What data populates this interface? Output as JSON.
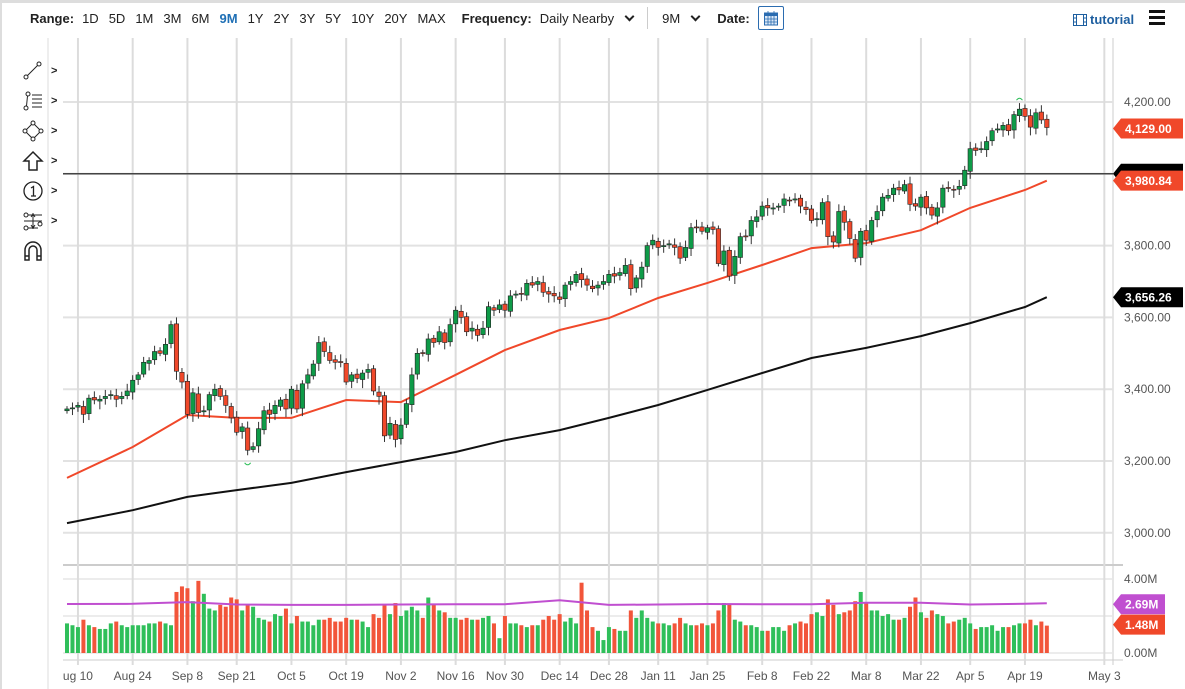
{
  "toolbar": {
    "range_label": "Range:",
    "ranges": [
      "1D",
      "5D",
      "1M",
      "3M",
      "6M",
      "9M",
      "1Y",
      "2Y",
      "3Y",
      "5Y",
      "10Y",
      "20Y",
      "MAX"
    ],
    "active_range": "9M",
    "frequency_label": "Frequency:",
    "frequency_value": "Daily Nearby",
    "period_value": "9M",
    "date_label": "Date:",
    "tutorial_label": "tutorial"
  },
  "drawing_tools": [
    "line-tool-icon",
    "fib-tool-icon",
    "shape-tool-icon",
    "arrow-tool-icon",
    "marker-tool-icon",
    "measure-tool-icon",
    "magnet-icon"
  ],
  "colors": {
    "up": "#0e9b48",
    "down": "#f0482a",
    "ma_fast": "#f0482a",
    "ma_slow": "#111111",
    "volume_ma": "#c04fd0",
    "price_line": "#444444"
  },
  "chart_data": {
    "type": "candlestick",
    "price_axis": {
      "ticks": [
        "4,200.00",
        "3,800.00",
        "3,600.00",
        "3,400.00",
        "3,200.00",
        "3,000.00"
      ],
      "tick_values": [
        4200,
        3800,
        3600,
        3400,
        3200,
        3000
      ],
      "range": [
        2990,
        4250
      ]
    },
    "volume_axis": {
      "ticks": [
        "4.00M",
        "0.00M"
      ],
      "tick_values": [
        4,
        0
      ],
      "range": [
        0,
        4.5
      ]
    },
    "x_ticks": [
      "ug 10",
      "Aug 24",
      "Sep 8",
      "Sep 21",
      "Oct 5",
      "Oct 19",
      "Nov 2",
      "Nov 16",
      "Nov 30",
      "Dec 14",
      "Dec 28",
      "Jan 11",
      "Jan 25",
      "Feb 8",
      "Feb 22",
      "Mar 8",
      "Mar 22",
      "Apr 5",
      "Apr 19",
      "May 3"
    ],
    "grid": true,
    "horizontal_line": 4000,
    "last_price_label": "4,129.00",
    "ma_fast_label": "3,980.84",
    "ma_slow_label": "3,656.26",
    "volume_ma_label": "2.69M",
    "volume_last_label": "1.48M",
    "closes": [
      3345,
      3348,
      3355,
      3330,
      3375,
      3370,
      3372,
      3380,
      3385,
      3372,
      3380,
      3395,
      3425,
      3440,
      3475,
      3480,
      3505,
      3500,
      3525,
      3580,
      3450,
      3420,
      3330,
      3390,
      3335,
      3340,
      3385,
      3400,
      3380,
      3355,
      3320,
      3280,
      3295,
      3230,
      3240,
      3290,
      3340,
      3330,
      3355,
      3370,
      3345,
      3400,
      3345,
      3415,
      3440,
      3470,
      3530,
      3505,
      3480,
      3475,
      3475,
      3420,
      3440,
      3430,
      3445,
      3455,
      3395,
      3380,
      3270,
      3305,
      3260,
      3300,
      3360,
      3440,
      3500,
      3500,
      3540,
      3530,
      3560,
      3530,
      3580,
      3620,
      3600,
      3560,
      3570,
      3550,
      3570,
      3630,
      3620,
      3635,
      3620,
      3660,
      3665,
      3665,
      3695,
      3690,
      3700,
      3670,
      3665,
      3660,
      3650,
      3690,
      3700,
      3720,
      3705,
      3690,
      3680,
      3690,
      3700,
      3720,
      3715,
      3725,
      3745,
      3680,
      3710,
      3740,
      3800,
      3815,
      3795,
      3800,
      3805,
      3795,
      3765,
      3795,
      3850,
      3850,
      3840,
      3850,
      3845,
      3750,
      3785,
      3715,
      3770,
      3825,
      3825,
      3870,
      3880,
      3910,
      3905,
      3905,
      3910,
      3930,
      3925,
      3930,
      3910,
      3900,
      3870,
      3875,
      3920,
      3825,
      3810,
      3895,
      3865,
      3820,
      3765,
      3840,
      3815,
      3870,
      3895,
      3935,
      3940,
      3960,
      3955,
      3970,
      3915,
      3910,
      3935,
      3905,
      3885,
      3905,
      3960,
      3960,
      3955,
      3965,
      4010,
      4070,
      4065,
      4070,
      4090,
      4120,
      4125,
      4135,
      4120,
      4165,
      4180,
      4160,
      4130,
      4170,
      4150,
      4129
    ],
    "volumes_millions": [
      1.6,
      1.5,
      1.4,
      1.8,
      1.5,
      1.4,
      1.3,
      1.3,
      1.6,
      1.7,
      1.5,
      1.4,
      1.5,
      1.5,
      1.5,
      1.6,
      1.6,
      1.7,
      1.6,
      1.5,
      3.3,
      3.6,
      3.5,
      2.8,
      3.9,
      3.2,
      2.4,
      2.3,
      2.6,
      2.5,
      3.0,
      2.9,
      2.3,
      2.6,
      2.5,
      1.9,
      1.8,
      1.7,
      2.1,
      2.0,
      2.4,
      1.6,
      2.0,
      1.7,
      1.7,
      1.5,
      1.8,
      1.8,
      1.9,
      1.7,
      1.7,
      1.9,
      1.8,
      1.8,
      1.7,
      1.4,
      2.1,
      1.9,
      2.6,
      2.1,
      2.7,
      2.0,
      2.3,
      2.5,
      2.3,
      1.9,
      3.0,
      2.6,
      2.3,
      2.2,
      1.9,
      1.9,
      1.8,
      1.9,
      1.8,
      1.8,
      1.9,
      2.0,
      1.6,
      0.8,
      2.0,
      1.6,
      1.6,
      1.5,
      1.4,
      1.5,
      1.5,
      1.8,
      2.0,
      1.8,
      2.1,
      1.7,
      1.9,
      1.6,
      3.8,
      2.3,
      1.4,
      1.2,
      0.7,
      1.4,
      1.3,
      1.2,
      1.2,
      2.3,
      1.9,
      2.3,
      1.9,
      1.7,
      1.6,
      1.6,
      1.5,
      1.6,
      1.9,
      1.6,
      1.5,
      1.5,
      1.6,
      1.5,
      1.6,
      2.3,
      2.7,
      2.6,
      1.8,
      1.7,
      1.5,
      1.5,
      1.4,
      1.2,
      1.2,
      1.4,
      1.4,
      1.2,
      1.5,
      1.6,
      1.7,
      1.6,
      2.1,
      2.2,
      2.0,
      2.9,
      2.6,
      2.1,
      2.2,
      2.3,
      2.8,
      3.3,
      2.7,
      2.3,
      2.3,
      2.0,
      2.1,
      1.8,
      1.8,
      1.9,
      2.5,
      3.0,
      2.2,
      1.9,
      2.3,
      2.1,
      2.0,
      1.6,
      1.7,
      1.8,
      1.9,
      1.6,
      1.3,
      1.4,
      1.4,
      1.5,
      1.2,
      1.4,
      1.4,
      1.5,
      1.6,
      1.6,
      1.8,
      1.5,
      1.7,
      1.48
    ],
    "ma_dates": [
      "Aug 6",
      "Aug 24",
      "Sep 8",
      "Sep 21",
      "Oct 5",
      "Oct 19",
      "Nov 2",
      "Nov 16",
      "Nov 30",
      "Dec 14",
      "Dec 28",
      "Jan 11",
      "Jan 25",
      "Feb 8",
      "Feb 22",
      "Mar 8",
      "Mar 22",
      "Apr 5",
      "Apr 19",
      "Apr 23"
    ],
    "ma_fast": [
      3153,
      3239,
      3328,
      3320,
      3320,
      3370,
      3364,
      3440,
      3509,
      3565,
      3598,
      3654,
      3696,
      3746,
      3793,
      3807,
      3843,
      3905,
      3955,
      3980.84
    ],
    "ma_slow": [
      3027,
      3063,
      3100,
      3119,
      3139,
      3169,
      3197,
      3225,
      3258,
      3286,
      3320,
      3356,
      3398,
      3445,
      3487,
      3515,
      3548,
      3584,
      3629,
      3656.26
    ],
    "volume_ma": [
      2.65,
      2.66,
      2.75,
      2.62,
      2.6,
      2.6,
      2.62,
      2.63,
      2.64,
      2.85,
      2.6,
      2.62,
      2.65,
      2.64,
      2.63,
      2.72,
      2.72,
      2.62,
      2.66,
      2.69
    ]
  }
}
